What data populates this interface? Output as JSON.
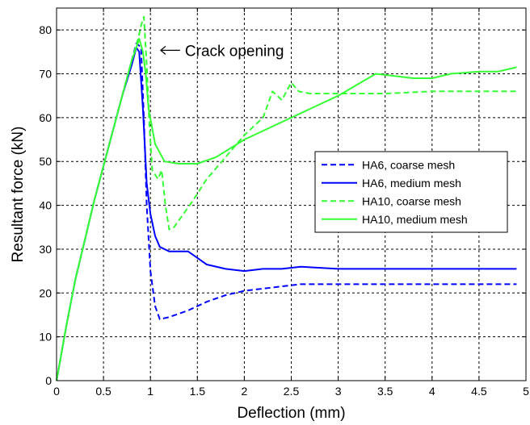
{
  "chart_data": {
    "type": "line",
    "title": "",
    "xlabel": "Deflection (mm)",
    "ylabel": "Resultant force (kN)",
    "xlim": [
      0,
      5
    ],
    "ylim": [
      0,
      85
    ],
    "xticks": [
      0,
      0.5,
      1,
      1.5,
      2,
      2.5,
      3,
      3.5,
      4,
      4.5,
      5
    ],
    "xtick_labels": [
      "0",
      "0.5",
      "1",
      "1.5",
      "2",
      "2.5",
      "3",
      "3.5",
      "4",
      "4.5",
      "5"
    ],
    "yticks": [
      0,
      10,
      20,
      30,
      40,
      50,
      60,
      70,
      80
    ],
    "ytick_labels": [
      "0",
      "10",
      "20",
      "30",
      "40",
      "50",
      "60",
      "70",
      "80"
    ],
    "grid": true,
    "legend_position": "right",
    "annotation": {
      "text": "Crack opening",
      "points_to": [
        0.92,
        75
      ]
    },
    "series": [
      {
        "name": "HA6, coarse mesh",
        "color": "#0000ff",
        "style": "dashed",
        "points": [
          [
            0,
            0
          ],
          [
            0.1,
            12
          ],
          [
            0.2,
            23
          ],
          [
            0.3,
            32
          ],
          [
            0.4,
            41
          ],
          [
            0.5,
            49
          ],
          [
            0.6,
            57
          ],
          [
            0.7,
            65
          ],
          [
            0.8,
            73
          ],
          [
            0.85,
            77
          ],
          [
            0.9,
            76
          ],
          [
            0.93,
            60
          ],
          [
            0.96,
            40
          ],
          [
            1.0,
            25
          ],
          [
            1.05,
            17
          ],
          [
            1.1,
            14
          ],
          [
            1.2,
            14.5
          ],
          [
            1.4,
            16
          ],
          [
            1.6,
            18
          ],
          [
            1.8,
            19.5
          ],
          [
            2.0,
            20.5
          ],
          [
            2.2,
            21
          ],
          [
            2.4,
            21.5
          ],
          [
            2.6,
            22
          ],
          [
            3.0,
            22
          ],
          [
            3.5,
            22
          ],
          [
            4.0,
            22
          ],
          [
            4.5,
            22
          ],
          [
            4.9,
            22
          ]
        ]
      },
      {
        "name": "HA6, medium mesh",
        "color": "#0000ff",
        "style": "solid",
        "points": [
          [
            0,
            0
          ],
          [
            0.1,
            12
          ],
          [
            0.2,
            23
          ],
          [
            0.3,
            32
          ],
          [
            0.4,
            41
          ],
          [
            0.5,
            49
          ],
          [
            0.6,
            57
          ],
          [
            0.7,
            65
          ],
          [
            0.8,
            72
          ],
          [
            0.85,
            76
          ],
          [
            0.88,
            75
          ],
          [
            0.92,
            62
          ],
          [
            0.96,
            45
          ],
          [
            1.0,
            38
          ],
          [
            1.05,
            33
          ],
          [
            1.1,
            30.5
          ],
          [
            1.2,
            29.5
          ],
          [
            1.4,
            29.5
          ],
          [
            1.5,
            28
          ],
          [
            1.6,
            26.5
          ],
          [
            1.8,
            25.5
          ],
          [
            2.0,
            25
          ],
          [
            2.2,
            25.5
          ],
          [
            2.4,
            25.5
          ],
          [
            2.6,
            26
          ],
          [
            3.0,
            25.5
          ],
          [
            3.5,
            25.5
          ],
          [
            4.0,
            25.5
          ],
          [
            4.5,
            25.5
          ],
          [
            4.9,
            25.5
          ]
        ]
      },
      {
        "name": "HA10, coarse mesh",
        "color": "#33ff33",
        "style": "dashed",
        "points": [
          [
            0,
            0
          ],
          [
            0.1,
            12
          ],
          [
            0.2,
            23
          ],
          [
            0.3,
            32
          ],
          [
            0.4,
            41
          ],
          [
            0.5,
            49
          ],
          [
            0.6,
            57
          ],
          [
            0.7,
            65
          ],
          [
            0.8,
            73
          ],
          [
            0.87,
            78
          ],
          [
            0.9,
            81
          ],
          [
            0.93,
            83
          ],
          [
            0.96,
            72
          ],
          [
            0.99,
            58
          ],
          [
            1.02,
            48
          ],
          [
            1.08,
            46
          ],
          [
            1.12,
            48
          ],
          [
            1.16,
            40
          ],
          [
            1.2,
            34.5
          ],
          [
            1.25,
            35
          ],
          [
            1.35,
            38
          ],
          [
            1.45,
            41
          ],
          [
            1.6,
            46
          ],
          [
            1.8,
            51
          ],
          [
            2.0,
            56
          ],
          [
            2.2,
            60
          ],
          [
            2.3,
            66
          ],
          [
            2.4,
            64
          ],
          [
            2.5,
            68
          ],
          [
            2.58,
            66
          ],
          [
            2.7,
            65.5
          ],
          [
            3.0,
            65.5
          ],
          [
            3.5,
            65.5
          ],
          [
            4.0,
            66
          ],
          [
            4.5,
            66
          ],
          [
            4.9,
            66
          ]
        ]
      },
      {
        "name": "HA10, medium mesh",
        "color": "#33ff33",
        "style": "solid",
        "points": [
          [
            0,
            0
          ],
          [
            0.1,
            12
          ],
          [
            0.2,
            23
          ],
          [
            0.3,
            32
          ],
          [
            0.4,
            41
          ],
          [
            0.5,
            49
          ],
          [
            0.6,
            57
          ],
          [
            0.7,
            65
          ],
          [
            0.8,
            73
          ],
          [
            0.85,
            76
          ],
          [
            0.88,
            78
          ],
          [
            0.92,
            75
          ],
          [
            0.95,
            70
          ],
          [
            0.98,
            62
          ],
          [
            1.05,
            54
          ],
          [
            1.15,
            50
          ],
          [
            1.3,
            49.5
          ],
          [
            1.5,
            49.5
          ],
          [
            1.7,
            51
          ],
          [
            2.0,
            55
          ],
          [
            2.5,
            60
          ],
          [
            3.0,
            65
          ],
          [
            3.4,
            70
          ],
          [
            3.6,
            69.5
          ],
          [
            3.8,
            69
          ],
          [
            4.0,
            69
          ],
          [
            4.2,
            70
          ],
          [
            4.5,
            70.5
          ],
          [
            4.7,
            70.5
          ],
          [
            4.9,
            71.5
          ]
        ]
      }
    ]
  }
}
